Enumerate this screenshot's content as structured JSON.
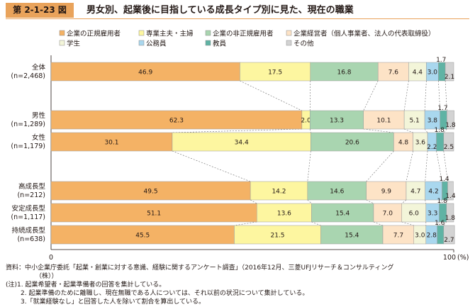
{
  "figure": {
    "badge": "第 2-1-23 図",
    "title": "男女別、起業後に目指している成長タイプ別に見た、現在の職業"
  },
  "chart_data": {
    "type": "bar",
    "orientation": "horizontal",
    "stacked": true,
    "title": "男女別、起業後に目指している成長タイプ別に見た、現在の職業",
    "xlim": [
      0,
      100
    ],
    "x_ticks": [
      "0",
      "100"
    ],
    "x_unit": "(%)",
    "legend_position": "top",
    "categories": [
      {
        "label": "全体",
        "n": "(n=2,468)"
      },
      {
        "label": "男性",
        "n": "(n=1,289)"
      },
      {
        "label": "女性",
        "n": "(n=1,179)"
      },
      {
        "label": "高成長型",
        "n": "(n=212)"
      },
      {
        "label": "安定成長型",
        "n": "(n=1,117)"
      },
      {
        "label": "持続成長型",
        "n": "(n=638)"
      }
    ],
    "series": [
      {
        "name": "企業の正規雇用者",
        "color": "#f4b265",
        "values": [
          46.9,
          62.3,
          30.1,
          49.5,
          51.1,
          45.5
        ]
      },
      {
        "name": "専業主夫・主婦",
        "color": "#fdf6a0",
        "values": [
          17.5,
          2.0,
          34.4,
          14.2,
          13.6,
          21.5
        ]
      },
      {
        "name": "企業の非正規雇用者",
        "color": "#a9d5b0",
        "values": [
          16.8,
          13.3,
          20.6,
          14.6,
          15.4,
          15.4
        ]
      },
      {
        "name": "企業経営者（個人事業者、法人の代表取締役）",
        "color": "#fde3c6",
        "values": [
          7.6,
          10.1,
          4.8,
          9.9,
          7.0,
          7.7
        ]
      },
      {
        "name": "学生",
        "color": "#f3f5d9",
        "values": [
          4.4,
          5.1,
          3.6,
          4.7,
          6.0,
          3.0
        ]
      },
      {
        "name": "公務員",
        "color": "#a9d7ee",
        "values": [
          3.0,
          3.8,
          2.2,
          4.2,
          3.3,
          2.8
        ]
      },
      {
        "name": "教員",
        "color": "#5fb3a4",
        "values": [
          1.7,
          1.7,
          1.8,
          1.4,
          1.8,
          1.6
        ]
      },
      {
        "name": "その他",
        "color": "#d3d3d3",
        "values": [
          2.1,
          1.8,
          2.5,
          1.4,
          1.8,
          2.7
        ]
      }
    ]
  },
  "notes": {
    "source": "資料：中小企業庁委託「起業・創業に対する意識、経験に関するアンケート調査」（2016年12月、三菱UFJリサーチ＆コンサルティング",
    "source_cont": "（株））",
    "note1": "(注)1. 起業希望者・起業準備者の回答を集計している。",
    "note2": "2. 起業準備のために離職し、現在無職である人については、それ以前の状況について集計している。",
    "note3": "3.「就業経験なし」と回答した人を除いて割合を算出している。"
  }
}
